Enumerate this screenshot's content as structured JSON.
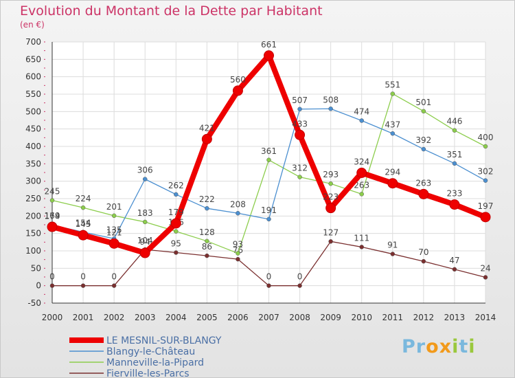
{
  "title": "Evolution du Montant de la Dette par Habitant",
  "subtitle": "(en €)",
  "logo_text": "Proxiti",
  "chart_data": {
    "type": "line",
    "x": [
      "2000",
      "2001",
      "2002",
      "2003",
      "2004",
      "2005",
      "2006",
      "2007",
      "2008",
      "2009",
      "2010",
      "2011",
      "2012",
      "2013",
      "2014"
    ],
    "ylim": [
      -50,
      700
    ],
    "yticks": [
      -50,
      0,
      50,
      100,
      150,
      200,
      250,
      300,
      350,
      400,
      450,
      500,
      550,
      600,
      650,
      700
    ],
    "grid": true,
    "legend_position": "bottom-left",
    "series": [
      {
        "name": "LE MESNIL-SUR-BLANGY",
        "color": "#ee0000",
        "values": [
          169,
          145,
          121,
          94,
          179,
          421,
          560,
          661,
          433,
          223,
          324,
          294,
          263,
          233,
          197
        ]
      },
      {
        "name": "Blangy-le-Château",
        "color": "#4b8fd0",
        "values": [
          174,
          154,
          135,
          306,
          262,
          222,
          208,
          191,
          507,
          508,
          474,
          437,
          392,
          351,
          302
        ]
      },
      {
        "name": "Manneville-la-Pipard",
        "color": "#8ccd4c",
        "values": [
          245,
          224,
          201,
          183,
          156,
          128,
          93,
          361,
          312,
          293,
          263,
          551,
          501,
          446,
          400
        ]
      },
      {
        "name": "Fierville-les-Parcs",
        "color": "#7a2f2f",
        "values": [
          0,
          0,
          0,
          104,
          95,
          86,
          76,
          0,
          0,
          127,
          111,
          91,
          70,
          47,
          24
        ]
      }
    ]
  }
}
